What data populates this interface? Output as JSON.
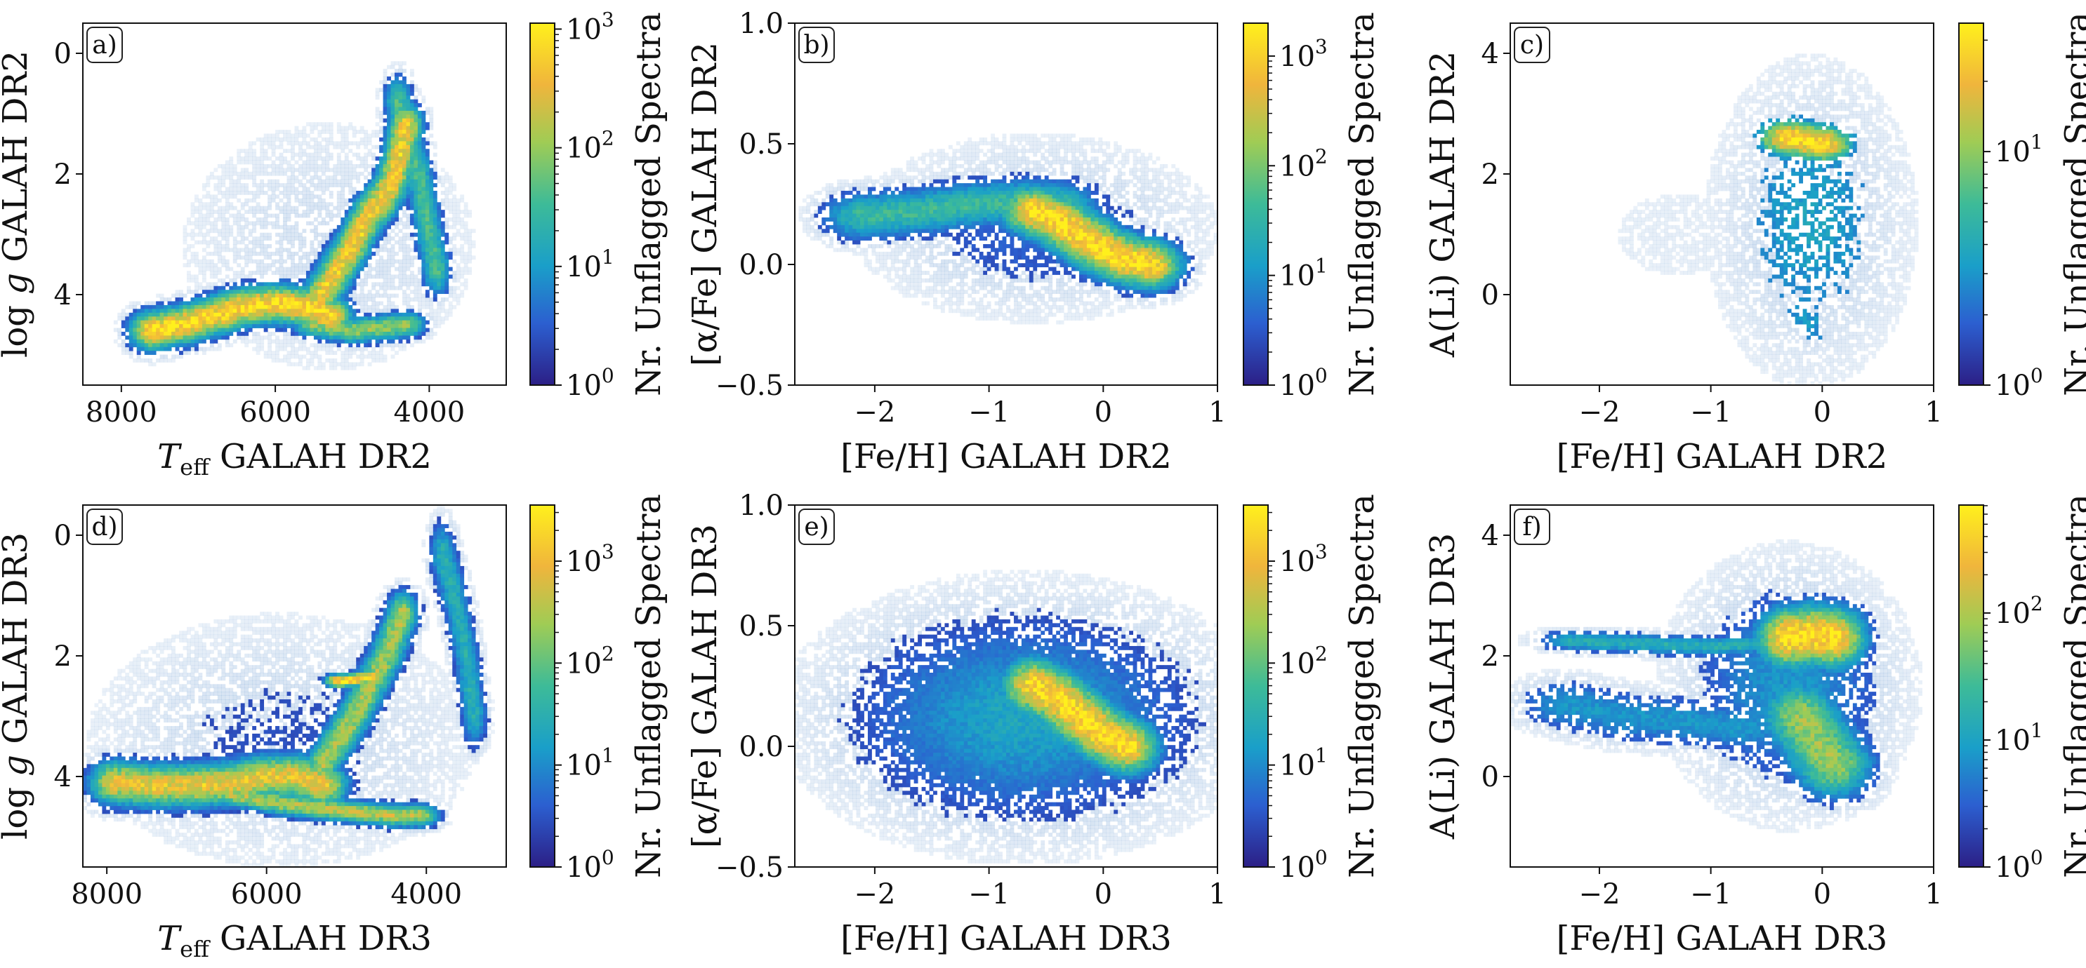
{
  "colormap": [
    "#2c1f86",
    "#2c5fd0",
    "#1a9fc9",
    "#3dbb98",
    "#9fcc55",
    "#f0b53c",
    "#fff01c"
  ],
  "chart_data": [
    {
      "id": "a",
      "type": "heatmap",
      "panel_label": "a)",
      "xlabel": "T_eff GALAH DR2",
      "xlabel_main": "T",
      "xlabel_sub": "eff",
      "xlabel_rest": " GALAH DR2",
      "ylabel": "log g GALAH DR2",
      "ylabel_pre": "log ",
      "ylabel_ital": "g",
      "ylabel_rest": " GALAH DR2",
      "xlim": [
        8500,
        3000
      ],
      "ylim": [
        5.5,
        -0.5
      ],
      "xticks": [
        8000,
        6000,
        4000
      ],
      "xtick_labels": [
        "8000",
        "6000",
        "4000"
      ],
      "yticks": [
        0,
        2,
        4
      ],
      "ytick_labels": [
        "0",
        "2",
        "4"
      ],
      "colorbar": {
        "label": "Nr. Unflagged Spectra",
        "scale": "log",
        "max_exp": 3.05,
        "ticks": [
          {
            "exp": 0,
            "label": "10^0"
          },
          {
            "exp": 1,
            "label": "10^1"
          },
          {
            "exp": 2,
            "label": "10^2"
          },
          {
            "exp": 3,
            "label": "10^3"
          }
        ]
      },
      "density_curves": [
        {
          "x": [
            7600,
            7200,
            6800,
            6400,
            6000,
            5600,
            5300
          ],
          "y": [
            4.6,
            4.5,
            4.35,
            4.2,
            4.15,
            4.2,
            4.35
          ],
          "width_x": 200,
          "width_y": 0.22,
          "peak": 2.9
        },
        {
          "x": [
            5400,
            5200,
            5000,
            4800,
            4600,
            4500,
            4400,
            4300
          ],
          "y": [
            4.0,
            3.6,
            3.2,
            2.7,
            2.4,
            2.2,
            1.8,
            1.2
          ],
          "width_x": 150,
          "width_y": 0.25,
          "peak": 2.7
        },
        {
          "x": [
            5500,
            5000,
            4600,
            4300
          ],
          "y": [
            4.5,
            4.6,
            4.55,
            4.5
          ],
          "width_x": 180,
          "width_y": 0.15,
          "peak": 2.0
        },
        {
          "x": [
            4400,
            4250,
            4100,
            4000,
            3900
          ],
          "y": [
            0.8,
            1.5,
            2.2,
            3.0,
            3.6
          ],
          "width_x": 130,
          "width_y": 0.3,
          "peak": 1.6
        }
      ],
      "halo": {
        "x": 5300,
        "y": 3.2,
        "width_x": 1300,
        "width_y": 1.4,
        "peak": 0.35
      }
    },
    {
      "id": "b",
      "type": "heatmap",
      "panel_label": "b)",
      "xlabel": "[Fe/H] GALAH DR2",
      "ylabel": "[α/Fe] GALAH DR2",
      "xlim": [
        -2.7,
        1.0
      ],
      "ylim": [
        -0.5,
        1.0
      ],
      "xticks": [
        -2,
        -1,
        0,
        1
      ],
      "xtick_labels": [
        "−2",
        "−1",
        "0",
        "1"
      ],
      "yticks": [
        -0.5,
        0.0,
        0.5,
        1.0
      ],
      "ytick_labels": [
        "−0.5",
        "0.0",
        "0.5",
        "1.0"
      ],
      "colorbar": {
        "label": "Nr. Unflagged Spectra",
        "scale": "log",
        "max_exp": 3.3,
        "ticks": [
          {
            "exp": 0,
            "label": "10^0"
          },
          {
            "exp": 1,
            "label": "10^1"
          },
          {
            "exp": 2,
            "label": "10^2"
          },
          {
            "exp": 3,
            "label": "10^3"
          }
        ]
      },
      "density_curves": [
        {
          "x": [
            -2.1,
            -1.6,
            -1.1,
            -0.7,
            -0.4
          ],
          "y": [
            0.2,
            0.22,
            0.25,
            0.26,
            0.25
          ],
          "width_x": 0.25,
          "width_y": 0.07,
          "peak": 1.6
        },
        {
          "x": [
            -0.6,
            -0.4,
            -0.2,
            0.0,
            0.2,
            0.4
          ],
          "y": [
            0.22,
            0.18,
            0.12,
            0.06,
            0.02,
            0.0
          ],
          "width_x": 0.2,
          "width_y": 0.07,
          "peak": 3.2
        }
      ],
      "halo": {
        "x": -0.6,
        "y": 0.15,
        "width_x": 0.9,
        "width_y": 0.22,
        "peak": 0.6
      }
    },
    {
      "id": "c",
      "type": "heatmap",
      "panel_label": "c)",
      "xlabel": "[Fe/H] GALAH DR2",
      "ylabel": "A(Li) GALAH DR2",
      "xlim": [
        -2.8,
        1.0
      ],
      "ylim": [
        -1.5,
        4.5
      ],
      "xticks": [
        -2,
        -1,
        0,
        1
      ],
      "xtick_labels": [
        "−2",
        "−1",
        "0",
        "1"
      ],
      "yticks": [
        0,
        2,
        4
      ],
      "ytick_labels": [
        "0",
        "2",
        "4"
      ],
      "colorbar": {
        "label": "Nr. Unflagged Spectra",
        "scale": "log",
        "max_exp": 1.55,
        "ticks": [
          {
            "exp": 0,
            "label": "10^0"
          },
          {
            "exp": 1,
            "label": "10^1"
          }
        ]
      },
      "density_curves": [
        {
          "x": [
            -0.3,
            -0.15,
            0.0
          ],
          "y": [
            2.6,
            2.55,
            2.5
          ],
          "width_x": 0.2,
          "width_y": 0.22,
          "peak": 1.5
        },
        {
          "x": [
            -0.2,
            -0.1
          ],
          "y": [
            -0.3,
            -0.5
          ],
          "width_x": 0.15,
          "width_y": 0.4,
          "peak": 0.5
        }
      ],
      "halo": {
        "x": -0.1,
        "y": 1.2,
        "width_x": 0.55,
        "width_y": 1.6,
        "peak": 0.55
      },
      "halo2": {
        "x": -1.3,
        "y": 1.0,
        "width_x": 0.8,
        "width_y": 1.0,
        "peak": 0.15
      }
    },
    {
      "id": "d",
      "type": "heatmap",
      "panel_label": "d)",
      "xlabel": "T_eff GALAH DR3",
      "xlabel_main": "T",
      "xlabel_sub": "eff",
      "xlabel_rest": " GALAH DR3",
      "ylabel": "log g GALAH DR3",
      "ylabel_pre": "log ",
      "ylabel_ital": "g",
      "ylabel_rest": " GALAH DR3",
      "xlim": [
        8300,
        3000
      ],
      "ylim": [
        5.5,
        -0.5
      ],
      "xticks": [
        8000,
        6000,
        4000
      ],
      "xtick_labels": [
        "8000",
        "6000",
        "4000"
      ],
      "yticks": [
        0,
        2,
        4
      ],
      "ytick_labels": [
        "0",
        "2",
        "4"
      ],
      "colorbar": {
        "label": "Nr. Unflagged Spectra",
        "scale": "log",
        "max_exp": 3.55,
        "ticks": [
          {
            "exp": 0,
            "label": "10^0"
          },
          {
            "exp": 1,
            "label": "10^1"
          },
          {
            "exp": 2,
            "label": "10^2"
          },
          {
            "exp": 3,
            "label": "10^3"
          }
        ]
      },
      "density_curves": [
        {
          "x": [
            7900,
            7400,
            6900,
            6400,
            6000,
            5600,
            5300
          ],
          "y": [
            4.1,
            4.15,
            4.15,
            4.1,
            4.0,
            4.0,
            4.15
          ],
          "width_x": 220,
          "width_y": 0.25,
          "peak": 3.0
        },
        {
          "x": [
            6400,
            5800,
            5200,
            4800,
            4400,
            4100
          ],
          "y": [
            4.3,
            4.45,
            4.55,
            4.6,
            4.65,
            4.65
          ],
          "width_x": 180,
          "width_y": 0.13,
          "peak": 2.6
        },
        {
          "x": [
            5300,
            5100,
            4900,
            4700,
            4500,
            4300
          ],
          "y": [
            3.8,
            3.4,
            3.0,
            2.5,
            2.0,
            1.3
          ],
          "width_x": 140,
          "width_y": 0.25,
          "peak": 2.5
        },
        {
          "x": [
            5100,
            4900,
            4700
          ],
          "y": [
            2.42,
            2.4,
            2.35
          ],
          "width_x": 120,
          "width_y": 0.08,
          "peak": 3.3
        },
        {
          "x": [
            3800,
            3650,
            3500,
            3400
          ],
          "y": [
            0.3,
            1.0,
            2.0,
            3.0
          ],
          "width_x": 110,
          "width_y": 0.35,
          "peak": 1.5
        }
      ],
      "halo": {
        "x": 5800,
        "y": 3.4,
        "width_x": 1500,
        "width_y": 1.3,
        "peak": 0.45
      }
    },
    {
      "id": "e",
      "type": "heatmap",
      "panel_label": "e)",
      "xlabel": "[Fe/H] GALAH DR3",
      "ylabel": "[α/Fe] GALAH DR3",
      "xlim": [
        -2.7,
        1.0
      ],
      "ylim": [
        -0.5,
        1.0
      ],
      "xticks": [
        -2,
        -1,
        0,
        1
      ],
      "xtick_labels": [
        "−2",
        "−1",
        "0",
        "1"
      ],
      "yticks": [
        -0.5,
        0.0,
        0.5,
        1.0
      ],
      "ytick_labels": [
        "−0.5",
        "0.0",
        "0.5",
        "1.0"
      ],
      "colorbar": {
        "label": "Nr. Unflagged Spectra",
        "scale": "log",
        "max_exp": 3.55,
        "ticks": [
          {
            "exp": 0,
            "label": "10^0"
          },
          {
            "exp": 1,
            "label": "10^1"
          },
          {
            "exp": 2,
            "label": "10^2"
          },
          {
            "exp": 3,
            "label": "10^3"
          }
        ]
      },
      "density_curves": [
        {
          "x": [
            -0.6,
            -0.4,
            -0.2,
            0.0,
            0.2
          ],
          "y": [
            0.25,
            0.2,
            0.12,
            0.05,
            0.0
          ],
          "width_x": 0.2,
          "width_y": 0.08,
          "peak": 3.4
        }
      ],
      "halo": {
        "x": -0.7,
        "y": 0.12,
        "width_x": 1.0,
        "width_y": 0.28,
        "peak": 1.3
      }
    },
    {
      "id": "f",
      "type": "heatmap",
      "panel_label": "f)",
      "xlabel": "[Fe/H] GALAH DR3",
      "ylabel": "A(Li) GALAH DR3",
      "xlim": [
        -2.8,
        1.0
      ],
      "ylim": [
        -1.5,
        4.5
      ],
      "xticks": [
        -2,
        -1,
        0,
        1
      ],
      "xtick_labels": [
        "−2",
        "−1",
        "0",
        "1"
      ],
      "yticks": [
        0,
        2,
        4
      ],
      "ytick_labels": [
        "0",
        "2",
        "4"
      ],
      "colorbar": {
        "label": "Nr. Unflagged Spectra",
        "scale": "log",
        "max_exp": 2.85,
        "ticks": [
          {
            "exp": 0,
            "label": "10^0"
          },
          {
            "exp": 1,
            "label": "10^1"
          },
          {
            "exp": 2,
            "label": "10^2"
          }
        ]
      },
      "density_curves": [
        {
          "x": [
            -0.3,
            -0.1,
            0.1
          ],
          "y": [
            2.3,
            2.35,
            2.3
          ],
          "width_x": 0.2,
          "width_y": 0.35,
          "peak": 2.8
        },
        {
          "x": [
            -0.2,
            -0.05,
            0.1
          ],
          "y": [
            1.0,
            0.6,
            0.2
          ],
          "width_x": 0.25,
          "width_y": 0.4,
          "peak": 1.9
        },
        {
          "x": [
            -2.2,
            -1.6,
            -1.0,
            -0.5
          ],
          "y": [
            2.25,
            2.2,
            2.15,
            2.2
          ],
          "width_x": 0.25,
          "width_y": 0.12,
          "peak": 1.2
        },
        {
          "x": [
            -2.3,
            -1.8,
            -1.2,
            -0.7
          ],
          "y": [
            1.2,
            1.0,
            0.9,
            0.8
          ],
          "width_x": 0.3,
          "width_y": 0.3,
          "peak": 0.9
        }
      ],
      "halo": {
        "x": -0.3,
        "y": 1.5,
        "width_x": 0.6,
        "width_y": 1.2,
        "peak": 0.9
      }
    }
  ]
}
